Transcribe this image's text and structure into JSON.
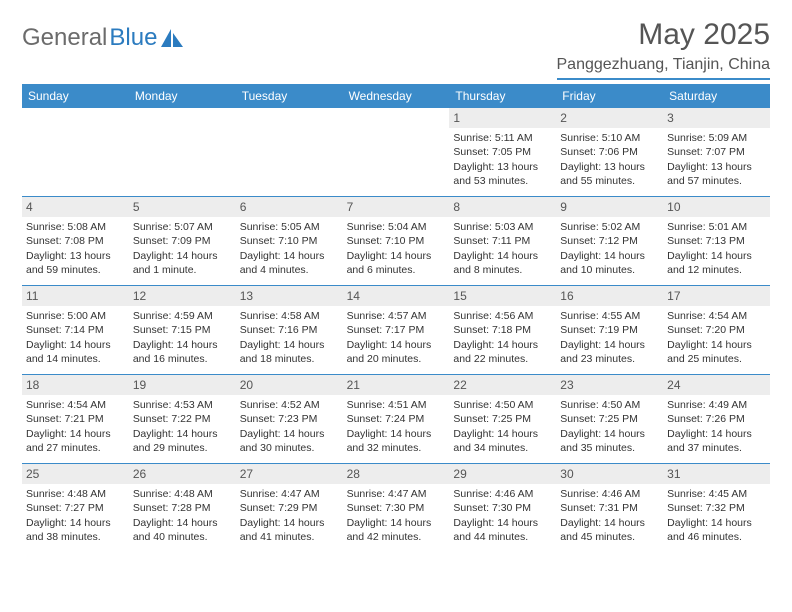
{
  "logo": {
    "text_gray": "General",
    "text_blue": "Blue"
  },
  "title": "May 2025",
  "location": "Panggezhuang, Tianjin, China",
  "colors": {
    "header_bg": "#3b8bc9",
    "header_text": "#ffffff",
    "day_number_bg": "#ededed",
    "rule": "#3b8bc9",
    "body_text": "#333333",
    "title_text": "#555555"
  },
  "day_names": [
    "Sunday",
    "Monday",
    "Tuesday",
    "Wednesday",
    "Thursday",
    "Friday",
    "Saturday"
  ],
  "weeks": [
    [
      {
        "n": "",
        "empty": true
      },
      {
        "n": "",
        "empty": true
      },
      {
        "n": "",
        "empty": true
      },
      {
        "n": "",
        "empty": true
      },
      {
        "n": "1",
        "sr": "5:11 AM",
        "ss": "7:05 PM",
        "dl": "13 hours and 53 minutes."
      },
      {
        "n": "2",
        "sr": "5:10 AM",
        "ss": "7:06 PM",
        "dl": "13 hours and 55 minutes."
      },
      {
        "n": "3",
        "sr": "5:09 AM",
        "ss": "7:07 PM",
        "dl": "13 hours and 57 minutes."
      }
    ],
    [
      {
        "n": "4",
        "sr": "5:08 AM",
        "ss": "7:08 PM",
        "dl": "13 hours and 59 minutes."
      },
      {
        "n": "5",
        "sr": "5:07 AM",
        "ss": "7:09 PM",
        "dl": "14 hours and 1 minute."
      },
      {
        "n": "6",
        "sr": "5:05 AM",
        "ss": "7:10 PM",
        "dl": "14 hours and 4 minutes."
      },
      {
        "n": "7",
        "sr": "5:04 AM",
        "ss": "7:10 PM",
        "dl": "14 hours and 6 minutes."
      },
      {
        "n": "8",
        "sr": "5:03 AM",
        "ss": "7:11 PM",
        "dl": "14 hours and 8 minutes."
      },
      {
        "n": "9",
        "sr": "5:02 AM",
        "ss": "7:12 PM",
        "dl": "14 hours and 10 minutes."
      },
      {
        "n": "10",
        "sr": "5:01 AM",
        "ss": "7:13 PM",
        "dl": "14 hours and 12 minutes."
      }
    ],
    [
      {
        "n": "11",
        "sr": "5:00 AM",
        "ss": "7:14 PM",
        "dl": "14 hours and 14 minutes."
      },
      {
        "n": "12",
        "sr": "4:59 AM",
        "ss": "7:15 PM",
        "dl": "14 hours and 16 minutes."
      },
      {
        "n": "13",
        "sr": "4:58 AM",
        "ss": "7:16 PM",
        "dl": "14 hours and 18 minutes."
      },
      {
        "n": "14",
        "sr": "4:57 AM",
        "ss": "7:17 PM",
        "dl": "14 hours and 20 minutes."
      },
      {
        "n": "15",
        "sr": "4:56 AM",
        "ss": "7:18 PM",
        "dl": "14 hours and 22 minutes."
      },
      {
        "n": "16",
        "sr": "4:55 AM",
        "ss": "7:19 PM",
        "dl": "14 hours and 23 minutes."
      },
      {
        "n": "17",
        "sr": "4:54 AM",
        "ss": "7:20 PM",
        "dl": "14 hours and 25 minutes."
      }
    ],
    [
      {
        "n": "18",
        "sr": "4:54 AM",
        "ss": "7:21 PM",
        "dl": "14 hours and 27 minutes."
      },
      {
        "n": "19",
        "sr": "4:53 AM",
        "ss": "7:22 PM",
        "dl": "14 hours and 29 minutes."
      },
      {
        "n": "20",
        "sr": "4:52 AM",
        "ss": "7:23 PM",
        "dl": "14 hours and 30 minutes."
      },
      {
        "n": "21",
        "sr": "4:51 AM",
        "ss": "7:24 PM",
        "dl": "14 hours and 32 minutes."
      },
      {
        "n": "22",
        "sr": "4:50 AM",
        "ss": "7:25 PM",
        "dl": "14 hours and 34 minutes."
      },
      {
        "n": "23",
        "sr": "4:50 AM",
        "ss": "7:25 PM",
        "dl": "14 hours and 35 minutes."
      },
      {
        "n": "24",
        "sr": "4:49 AM",
        "ss": "7:26 PM",
        "dl": "14 hours and 37 minutes."
      }
    ],
    [
      {
        "n": "25",
        "sr": "4:48 AM",
        "ss": "7:27 PM",
        "dl": "14 hours and 38 minutes."
      },
      {
        "n": "26",
        "sr": "4:48 AM",
        "ss": "7:28 PM",
        "dl": "14 hours and 40 minutes."
      },
      {
        "n": "27",
        "sr": "4:47 AM",
        "ss": "7:29 PM",
        "dl": "14 hours and 41 minutes."
      },
      {
        "n": "28",
        "sr": "4:47 AM",
        "ss": "7:30 PM",
        "dl": "14 hours and 42 minutes."
      },
      {
        "n": "29",
        "sr": "4:46 AM",
        "ss": "7:30 PM",
        "dl": "14 hours and 44 minutes."
      },
      {
        "n": "30",
        "sr": "4:46 AM",
        "ss": "7:31 PM",
        "dl": "14 hours and 45 minutes."
      },
      {
        "n": "31",
        "sr": "4:45 AM",
        "ss": "7:32 PM",
        "dl": "14 hours and 46 minutes."
      }
    ]
  ],
  "labels": {
    "sunrise": "Sunrise:",
    "sunset": "Sunset:",
    "daylight": "Daylight:"
  }
}
